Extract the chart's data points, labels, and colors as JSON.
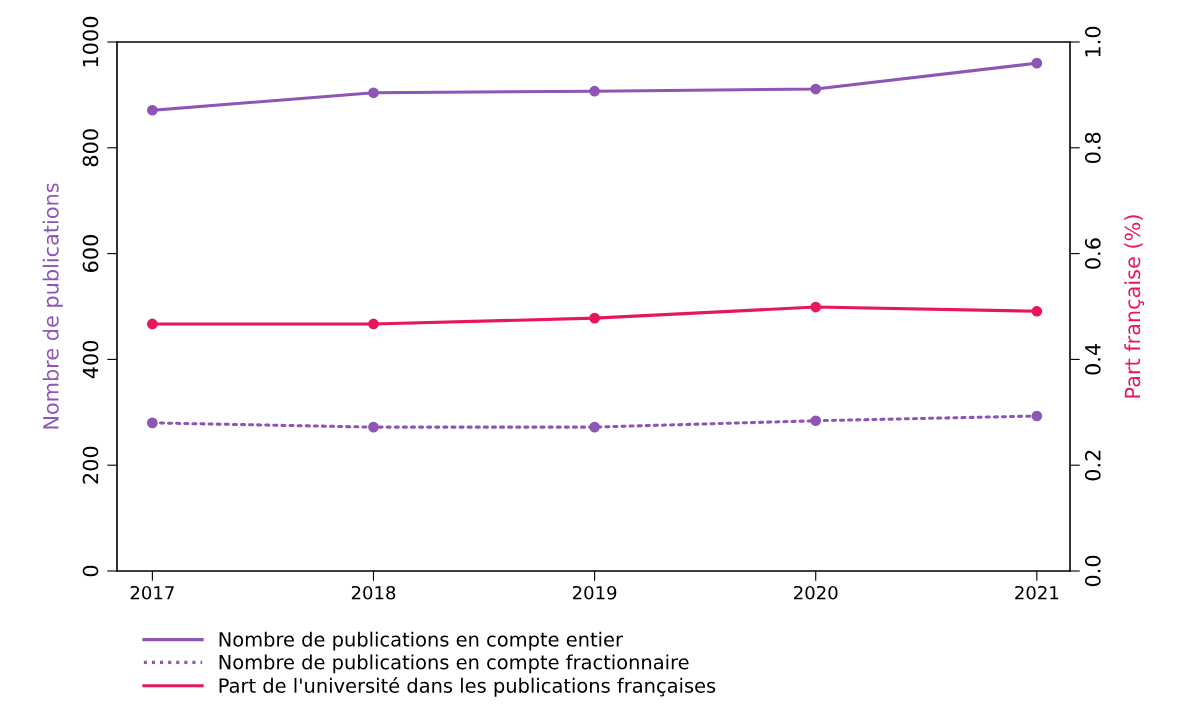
{
  "chart_data": {
    "type": "line",
    "xlabel": null,
    "ylabel": "Nombre de publications",
    "y2label": "Part française (%)",
    "x": [
      2017,
      2018,
      2019,
      2020,
      2021
    ],
    "series": [
      {
        "name": "Nombre de publications en compte entier",
        "color": "#8e55b5",
        "values": [
          871,
          904,
          907,
          911,
          960
        ],
        "line_style": "solid"
      },
      {
        "name": "Nombre de publications en compte fractionnaire",
        "color": "#8e55b5",
        "values": [
          280,
          272,
          272,
          284,
          293
        ],
        "line_style": "dotted"
      },
      {
        "name": "Part de l'université dans les publications françaises",
        "color": "#e8175d",
        "values": [
          0.467,
          0.467,
          0.478,
          0.499,
          0.491
        ],
        "axis": "y2",
        "line_style": "solid"
      }
    ],
    "xlim": [
      2016.84,
      2021.15
    ],
    "xticks": [
      2017,
      2018,
      2019,
      2020,
      2021
    ],
    "ylim": [
      0,
      1000
    ],
    "yticks": [
      0,
      200,
      400,
      600,
      800,
      1000
    ],
    "y2lim": [
      0,
      1
    ],
    "y2ticks": [
      {
        "value": 0,
        "label": "0.0"
      },
      {
        "value": 0.2,
        "label": "0.2"
      },
      {
        "value": 0.4,
        "label": "0.4"
      },
      {
        "value": 0.6,
        "label": "0.6"
      },
      {
        "value": 0.8,
        "label": "0.8"
      },
      {
        "value": 1,
        "label": "1.0"
      }
    ],
    "marker": "circle",
    "grid": false,
    "legend": "bottom"
  }
}
